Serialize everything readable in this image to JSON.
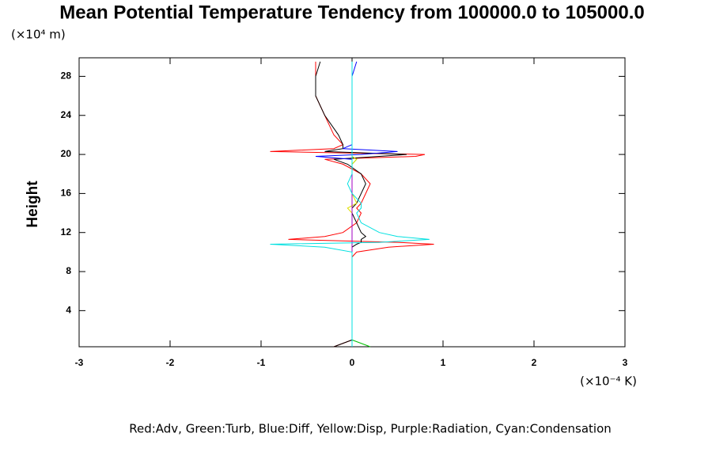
{
  "chart_data": {
    "type": "profile",
    "title": "Mean Potential Temperature Tendency from 100000.0 to 105000.0",
    "y_unit": "(×10⁴ m)",
    "y_label": "Height",
    "x_unit": "(×10⁻⁴ K)",
    "legend_text": "Red:Adv, Green:Turb, Blue:Diff, Yellow:Disp, Purple:Radiation, Cyan:Condensation",
    "xlim": [
      -3,
      3
    ],
    "xticks": [
      -3,
      -2,
      -1,
      0,
      1,
      2,
      3
    ],
    "ylim": [
      0.3,
      29.9
    ],
    "yticks": [
      4,
      8,
      12,
      16,
      20,
      24,
      28
    ],
    "y": [
      0.3,
      1,
      2,
      4,
      6,
      8,
      9.5,
      10,
      10.5,
      10.8,
      11,
      11.3,
      11.6,
      12,
      13,
      14,
      14.5,
      15,
      16,
      17,
      18,
      19,
      19.5,
      19.8,
      20,
      20.3,
      20.6,
      21,
      22,
      24,
      26,
      28,
      29.5
    ],
    "series": [
      {
        "color": "#ff0000",
        "values": [
          -0.2,
          0,
          0,
          0,
          0,
          0,
          0,
          0.05,
          0.4,
          0.9,
          0.5,
          -0.7,
          -0.3,
          -0.1,
          0.05,
          0.1,
          0.05,
          0.1,
          0.15,
          0.2,
          0.1,
          -0.1,
          -0.3,
          0.7,
          0.8,
          -0.9,
          -0.2,
          -0.1,
          -0.2,
          -0.3,
          -0.4,
          -0.4,
          -0.4
        ]
      },
      {
        "color": "#000000",
        "values": [
          -0.2,
          0,
          0,
          0,
          0,
          0,
          0,
          0,
          0,
          0.05,
          0.1,
          0.1,
          0.15,
          0.1,
          0.05,
          0,
          0,
          0.05,
          0.1,
          0.15,
          0.1,
          -0.05,
          -0.2,
          0.3,
          0.6,
          -0.3,
          -0.1,
          -0.1,
          -0.15,
          -0.3,
          -0.4,
          -0.4,
          -0.35
        ]
      },
      {
        "color": "#00c000",
        "values": [
          0.2,
          0,
          0,
          0,
          0,
          0,
          0,
          0,
          0,
          0,
          0,
          0,
          0,
          0,
          0,
          0,
          0,
          0,
          0,
          0,
          0,
          0,
          0.05,
          0,
          0,
          0,
          0,
          0,
          0,
          0,
          0,
          0,
          0
        ]
      },
      {
        "color": "#0000ff",
        "values": [
          0,
          0,
          0,
          0,
          0,
          0,
          0,
          0,
          0,
          0,
          0,
          0,
          0,
          0,
          0,
          0,
          0,
          0,
          0,
          0,
          0,
          0,
          0,
          -0.4,
          0.1,
          0.5,
          -0.1,
          0,
          0,
          0,
          0,
          0,
          0.05
        ]
      },
      {
        "color": "#e0e000",
        "values": [
          0,
          0,
          0,
          0,
          0,
          0,
          0,
          0,
          0,
          0,
          0,
          0,
          0,
          0,
          0,
          0,
          -0.05,
          0.05,
          0,
          0,
          0,
          0,
          0.05,
          0,
          0,
          0,
          0,
          0,
          0,
          0,
          0,
          0,
          0
        ]
      },
      {
        "color": "#a000c0",
        "values": [
          0,
          0,
          0,
          0,
          0,
          0,
          0,
          0,
          0,
          0,
          0,
          0,
          0,
          0,
          0,
          0,
          0,
          0,
          0,
          0,
          0,
          0,
          0,
          0,
          0,
          0,
          0,
          0,
          0,
          0,
          0,
          0,
          0
        ]
      },
      {
        "color": "#00e0e0",
        "values": [
          0,
          0,
          0,
          0,
          0,
          0,
          0,
          0,
          -0.3,
          -0.9,
          0.3,
          0.85,
          0.5,
          0.3,
          0.1,
          0.05,
          0.1,
          0.1,
          0,
          -0.05,
          0,
          0,
          0,
          0,
          0,
          0,
          0,
          0,
          0,
          0,
          0,
          0,
          0
        ]
      }
    ]
  }
}
